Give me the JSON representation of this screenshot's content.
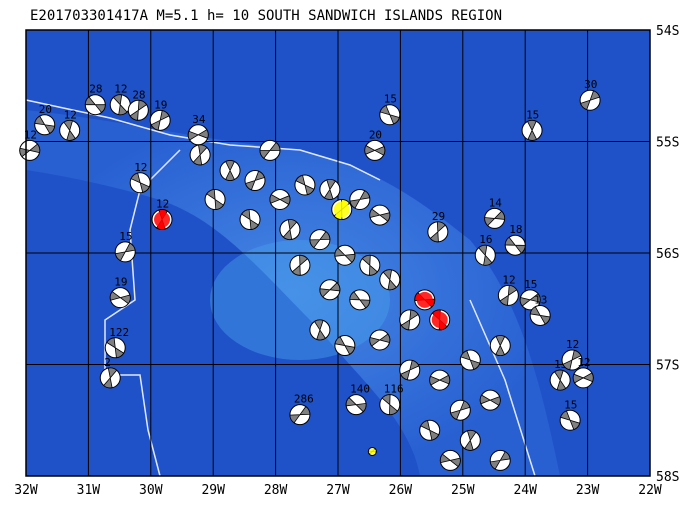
{
  "title": "E201703301417A M=5.1 h= 10 SOUTH SANDWICH ISLANDS REGION",
  "lonlim": [
    -32,
    -22
  ],
  "latlim": [
    -54,
    -58
  ],
  "x_labels": [
    {
      "value": -32,
      "label": "32W"
    },
    {
      "value": -31,
      "label": "31W"
    },
    {
      "value": -30,
      "label": "30W"
    },
    {
      "value": -29,
      "label": "29W"
    },
    {
      "value": -28,
      "label": "28W"
    },
    {
      "value": -27,
      "label": "27W"
    },
    {
      "value": -26,
      "label": "26W"
    },
    {
      "value": -25,
      "label": "25W"
    },
    {
      "value": -24,
      "label": "24W"
    },
    {
      "value": -23,
      "label": "23W"
    },
    {
      "value": -22,
      "label": "22W"
    }
  ],
  "y_labels": [
    {
      "value": -54,
      "label": "54S"
    },
    {
      "value": -55,
      "label": "55S"
    },
    {
      "value": -56,
      "label": "56S"
    },
    {
      "value": -57,
      "label": "57S"
    },
    {
      "value": -58,
      "label": "58S"
    }
  ],
  "mech_color": "#808080",
  "events": [
    {
      "lon": -30.89,
      "lat": -54.67,
      "depth": "28"
    },
    {
      "lon": -30.49,
      "lat": -54.67,
      "depth": "12"
    },
    {
      "lon": -30.2,
      "lat": -54.72,
      "depth": "28"
    },
    {
      "lon": -31.94,
      "lat": -55.08,
      "depth": "12"
    },
    {
      "lon": -31.7,
      "lat": -54.85,
      "depth": "20"
    },
    {
      "lon": -31.3,
      "lat": -54.9,
      "depth": "12"
    },
    {
      "lon": -29.85,
      "lat": -54.81,
      "depth": "19"
    },
    {
      "lon": -29.24,
      "lat": -54.94,
      "depth": "34"
    },
    {
      "lon": -26.17,
      "lat": -54.76,
      "depth": "15"
    },
    {
      "lon": -23.89,
      "lat": -54.9,
      "depth": "15"
    },
    {
      "lon": -22.96,
      "lat": -54.63,
      "depth": "30"
    },
    {
      "lon": -26.41,
      "lat": -55.08,
      "depth": "20"
    },
    {
      "lon": -30.17,
      "lat": -55.37,
      "depth": "12"
    },
    {
      "lon": -29.82,
      "lat": -55.7,
      "depth": "12",
      "color": "#ff0000"
    },
    {
      "lon": -30.41,
      "lat": -55.99,
      "depth": "15"
    },
    {
      "lon": -30.49,
      "lat": -56.4,
      "depth": "19"
    },
    {
      "lon": -30.57,
      "lat": -56.85,
      "depth": "122"
    },
    {
      "lon": -30.65,
      "lat": -57.12,
      "depth": "2"
    },
    {
      "lon": -27.61,
      "lat": -57.45,
      "depth": "286"
    },
    {
      "lon": -26.71,
      "lat": -57.36,
      "depth": "140"
    },
    {
      "lon": -26.17,
      "lat": -57.36,
      "depth": "116"
    },
    {
      "lon": -25.4,
      "lat": -55.81,
      "depth": "29"
    },
    {
      "lon": -24.49,
      "lat": -55.69,
      "depth": "14"
    },
    {
      "lon": -24.16,
      "lat": -55.93,
      "depth": "18"
    },
    {
      "lon": -24.64,
      "lat": -56.02,
      "depth": "16"
    },
    {
      "lon": -24.27,
      "lat": -56.38,
      "depth": "12"
    },
    {
      "lon": -23.92,
      "lat": -56.42,
      "depth": "15"
    },
    {
      "lon": -23.76,
      "lat": -56.56,
      "depth": "13"
    },
    {
      "lon": -23.44,
      "lat": -57.14,
      "depth": "13"
    },
    {
      "lon": -23.25,
      "lat": -56.96,
      "depth": "12"
    },
    {
      "lon": -23.07,
      "lat": -57.12,
      "depth": "12"
    },
    {
      "lon": -23.28,
      "lat": -57.5,
      "depth": "15"
    },
    {
      "lon": -28.73,
      "lat": -55.26
    },
    {
      "lon": -28.33,
      "lat": -55.35
    },
    {
      "lon": -27.93,
      "lat": -55.52
    },
    {
      "lon": -27.53,
      "lat": -55.39
    },
    {
      "lon": -27.13,
      "lat": -55.43
    },
    {
      "lon": -26.65,
      "lat": -55.52
    },
    {
      "lon": -26.33,
      "lat": -55.66
    },
    {
      "lon": -28.41,
      "lat": -55.7
    },
    {
      "lon": -27.77,
      "lat": -55.79
    },
    {
      "lon": -27.29,
      "lat": -55.88
    },
    {
      "lon": -26.89,
      "lat": -56.02
    },
    {
      "lon": -26.49,
      "lat": -56.11
    },
    {
      "lon": -27.61,
      "lat": -56.11
    },
    {
      "lon": -27.13,
      "lat": -56.33
    },
    {
      "lon": -26.65,
      "lat": -56.42
    },
    {
      "lon": -26.17,
      "lat": -56.24
    },
    {
      "lon": -25.85,
      "lat": -56.6
    },
    {
      "lon": -26.33,
      "lat": -56.78
    },
    {
      "lon": -26.89,
      "lat": -56.83
    },
    {
      "lon": -27.29,
      "lat": -56.69
    },
    {
      "lon": -25.85,
      "lat": -57.05
    },
    {
      "lon": -25.37,
      "lat": -57.14
    },
    {
      "lon": -24.88,
      "lat": -56.96
    },
    {
      "lon": -24.4,
      "lat": -56.83
    },
    {
      "lon": -25.04,
      "lat": -57.41
    },
    {
      "lon": -24.56,
      "lat": -57.32
    },
    {
      "lon": -25.53,
      "lat": -57.59
    },
    {
      "lon": -24.88,
      "lat": -57.68
    },
    {
      "lon": -24.4,
      "lat": -57.86
    },
    {
      "lon": -25.2,
      "lat": -57.86
    },
    {
      "lon": -28.97,
      "lat": -55.52
    },
    {
      "lon": -29.21,
      "lat": -55.12
    },
    {
      "lon": -28.09,
      "lat": -55.08
    },
    {
      "lon": -25.61,
      "lat": -56.42,
      "color": "#ff0000"
    },
    {
      "lon": -25.37,
      "lat": -56.6,
      "color": "#ff0000"
    },
    {
      "lon": -26.94,
      "lat": -55.61,
      "color": "#ffff00"
    },
    {
      "lon": -26.45,
      "lat": -57.78,
      "color": "#ffff00",
      "small": true
    }
  ]
}
